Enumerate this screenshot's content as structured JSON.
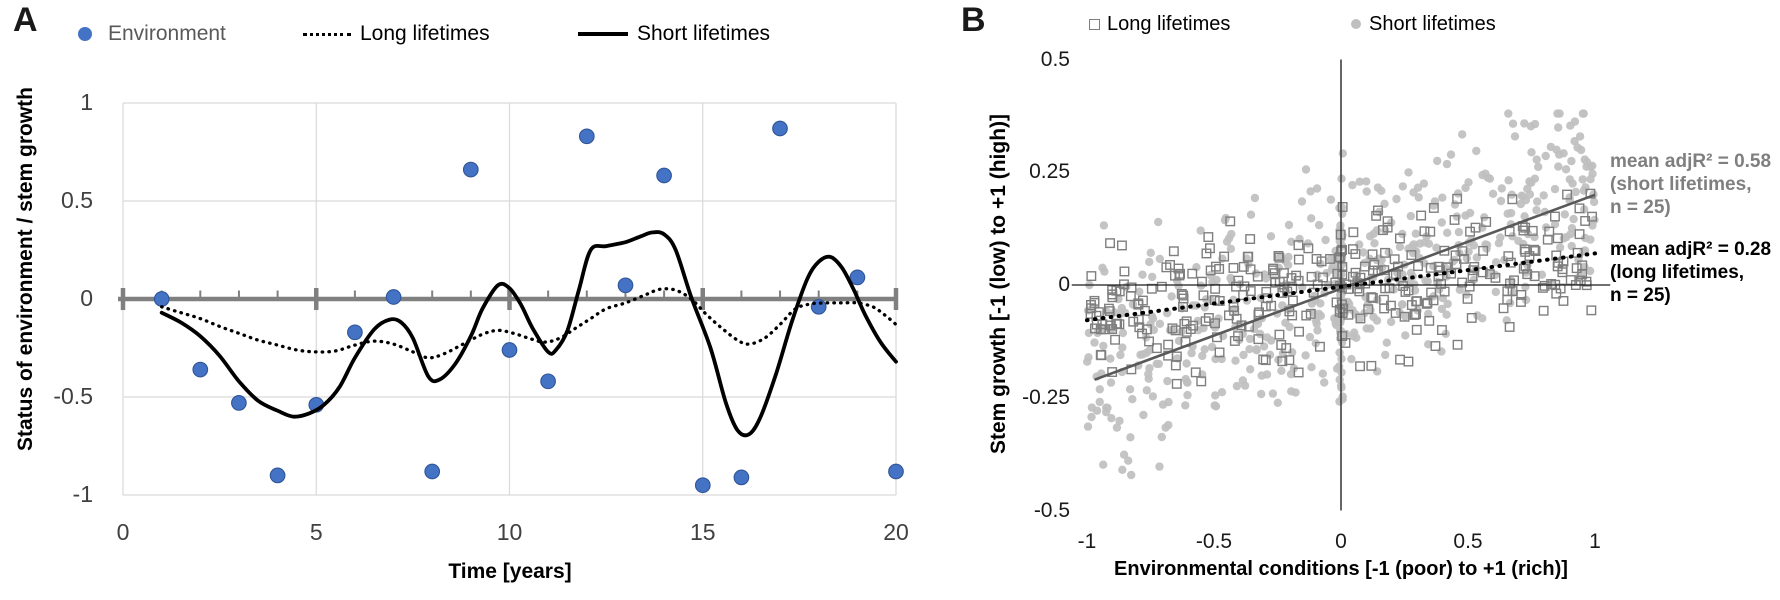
{
  "panels": {
    "a_label": "A",
    "b_label": "B"
  },
  "colors": {
    "environment_blue": "#4472C4",
    "environment_blue_edge": "#2F5597",
    "line_black": "#000000",
    "short_scatter_gray": "#BFBFBF",
    "long_square_gray": "#7F7F7F",
    "short_trend_gray": "#595959",
    "zero_axis_gray": "#808080",
    "gridline_gray": "#D9D9D9",
    "tick_text_gray": "#404040"
  },
  "chart_data": [
    {
      "id": "panel_a",
      "type": "line",
      "title": "",
      "xlabel": "Time [years]",
      "ylabel": "Status of environment / stem growth",
      "xlim": [
        0,
        20
      ],
      "ylim": [
        -1,
        1
      ],
      "x_ticks": [
        0,
        5,
        10,
        15,
        20
      ],
      "x_tick_labels": [
        "0",
        "5",
        "10",
        "15",
        "20"
      ],
      "minor_x_ticks": [
        1,
        2,
        3,
        4,
        6,
        7,
        8,
        9,
        11,
        12,
        13,
        14,
        16,
        17,
        18,
        19
      ],
      "y_ticks": [
        1,
        0.5,
        0,
        -0.5,
        -1
      ],
      "y_tick_labels": [
        "1",
        "0.5",
        "0",
        "-0.5",
        "-1"
      ],
      "grid": true,
      "legend_position": "top",
      "series": [
        {
          "name": "Environment",
          "kind": "scatter",
          "color": "#4472C4",
          "points": [
            [
              1,
              0
            ],
            [
              2,
              -0.36
            ],
            [
              3,
              -0.53
            ],
            [
              4,
              -0.9
            ],
            [
              5,
              -0.54
            ],
            [
              6,
              -0.17
            ],
            [
              7,
              0.01
            ],
            [
              8,
              -0.88
            ],
            [
              9,
              0.66
            ],
            [
              10,
              -0.26
            ],
            [
              11,
              -0.42
            ],
            [
              12,
              0.83
            ],
            [
              13,
              0.07
            ],
            [
              14,
              0.63
            ],
            [
              15,
              -0.95
            ],
            [
              16,
              -0.91
            ],
            [
              17,
              0.87
            ],
            [
              18,
              -0.04
            ],
            [
              19,
              0.11
            ],
            [
              20,
              -0.88
            ]
          ]
        },
        {
          "name": "Long lifetimes",
          "kind": "line",
          "style": "dotted",
          "color": "#000000",
          "points": [
            [
              1,
              -0.04
            ],
            [
              1.5,
              -0.07
            ],
            [
              2,
              -0.1
            ],
            [
              2.5,
              -0.14
            ],
            [
              3,
              -0.175
            ],
            [
              3.5,
              -0.21
            ],
            [
              4,
              -0.235
            ],
            [
              4.5,
              -0.26
            ],
            [
              5,
              -0.27
            ],
            [
              5.5,
              -0.265
            ],
            [
              6,
              -0.235
            ],
            [
              6.5,
              -0.215
            ],
            [
              7,
              -0.23
            ],
            [
              7.5,
              -0.27
            ],
            [
              7.9,
              -0.3
            ],
            [
              8.3,
              -0.28
            ],
            [
              8.8,
              -0.23
            ],
            [
              9.3,
              -0.18
            ],
            [
              9.7,
              -0.16
            ],
            [
              10.1,
              -0.175
            ],
            [
              10.5,
              -0.2
            ],
            [
              10.9,
              -0.22
            ],
            [
              11.3,
              -0.2
            ],
            [
              11.7,
              -0.15
            ],
            [
              12.1,
              -0.1
            ],
            [
              12.5,
              -0.05
            ],
            [
              13,
              -0.02
            ],
            [
              13.5,
              0.02
            ],
            [
              13.9,
              0.05
            ],
            [
              14.3,
              0.045
            ],
            [
              14.7,
              0
            ],
            [
              15.1,
              -0.08
            ],
            [
              15.5,
              -0.15
            ],
            [
              15.9,
              -0.21
            ],
            [
              16.2,
              -0.23
            ],
            [
              16.6,
              -0.2
            ],
            [
              17,
              -0.13
            ],
            [
              17.4,
              -0.05
            ],
            [
              17.8,
              -0.025
            ],
            [
              18.2,
              -0.02
            ],
            [
              18.6,
              -0.02
            ],
            [
              19,
              -0.02
            ],
            [
              19.4,
              -0.04
            ],
            [
              19.7,
              -0.08
            ],
            [
              20,
              -0.13
            ]
          ]
        },
        {
          "name": "Short lifetimes",
          "kind": "line",
          "style": "solid",
          "color": "#000000",
          "points": [
            [
              1,
              -0.07
            ],
            [
              1.5,
              -0.12
            ],
            [
              2,
              -0.19
            ],
            [
              2.5,
              -0.29
            ],
            [
              3,
              -0.42
            ],
            [
              3.5,
              -0.52
            ],
            [
              4,
              -0.57
            ],
            [
              4.4,
              -0.6
            ],
            [
              4.8,
              -0.585
            ],
            [
              5.2,
              -0.54
            ],
            [
              5.6,
              -0.45
            ],
            [
              6,
              -0.3
            ],
            [
              6.5,
              -0.155
            ],
            [
              6.9,
              -0.105
            ],
            [
              7.2,
              -0.12
            ],
            [
              7.5,
              -0.2
            ],
            [
              7.9,
              -0.395
            ],
            [
              8.2,
              -0.41
            ],
            [
              8.6,
              -0.33
            ],
            [
              9,
              -0.19
            ],
            [
              9.3,
              -0.05
            ],
            [
              9.7,
              0.07
            ],
            [
              10,
              0.055
            ],
            [
              10.3,
              -0.03
            ],
            [
              10.6,
              -0.15
            ],
            [
              11,
              -0.27
            ],
            [
              11.2,
              -0.26
            ],
            [
              11.5,
              -0.16
            ],
            [
              11.8,
              0.05
            ],
            [
              12.1,
              0.25
            ],
            [
              12.5,
              0.27
            ],
            [
              13,
              0.29
            ],
            [
              13.4,
              0.32
            ],
            [
              13.7,
              0.34
            ],
            [
              14,
              0.33
            ],
            [
              14.3,
              0.25
            ],
            [
              14.7,
              0.01
            ],
            [
              15.2,
              -0.25
            ],
            [
              15.6,
              -0.53
            ],
            [
              15.9,
              -0.67
            ],
            [
              16.2,
              -0.69
            ],
            [
              16.5,
              -0.6
            ],
            [
              16.9,
              -0.38
            ],
            [
              17.3,
              -0.12
            ],
            [
              17.7,
              0.1
            ],
            [
              18,
              0.19
            ],
            [
              18.3,
              0.215
            ],
            [
              18.6,
              0.16
            ],
            [
              18.9,
              0.05
            ],
            [
              19.2,
              -0.08
            ],
            [
              19.6,
              -0.22
            ],
            [
              20,
              -0.32
            ]
          ]
        }
      ]
    },
    {
      "id": "panel_b",
      "type": "scatter",
      "title": "",
      "xlabel": "Environmental conditions [-1 (poor) to +1 (rich)]",
      "ylabel": "Stem growth [-1 (low) to +1 (high)]",
      "xlim": [
        -1,
        1
      ],
      "ylim": [
        -0.5,
        0.5
      ],
      "x_ticks": [
        -1,
        -0.5,
        0,
        0.5,
        1
      ],
      "x_tick_labels": [
        "-1",
        "-0.5",
        "0",
        "0.5",
        "1"
      ],
      "y_ticks": [
        0.5,
        0.25,
        0,
        -0.25,
        -0.5
      ],
      "y_tick_labels": [
        "0.5",
        "0.25",
        "0",
        "-0.25",
        "-0.5"
      ],
      "grid": false,
      "legend_position": "top",
      "series": [
        {
          "name": "Short lifetimes",
          "marker": "gray-dot",
          "color": "#BFBFBF",
          "n_points": 520,
          "slope": 0.21,
          "intercept": 0,
          "noise_sd": 0.115,
          "y_clip": [
            -0.46,
            0.38
          ],
          "zero_cluster": {
            "n": 55,
            "y_mean": -0.02,
            "y_sd": 0.12
          },
          "seed": 42
        },
        {
          "name": "Long lifetimes",
          "marker": "open-square",
          "color": "#7F7F7F",
          "n_points": 330,
          "slope": 0.07,
          "intercept": 0,
          "noise_sd": 0.075,
          "y_clip": [
            -0.28,
            0.22
          ],
          "zero_cluster": {
            "n": 12,
            "y_mean": 0,
            "y_sd": 0.07
          },
          "seed": 7
        }
      ],
      "trendlines": [
        {
          "series": "Short lifetimes",
          "style": "solid",
          "color": "#595959",
          "x1": -0.97,
          "y1": -0.21,
          "x2": 1.0,
          "y2": 0.2
        },
        {
          "series": "Long lifetimes",
          "style": "dotted",
          "color": "#000000",
          "x1": -1.0,
          "y1": -0.078,
          "x2": 1.0,
          "y2": 0.07
        }
      ],
      "annotations": [
        {
          "lines": [
            "mean adjR² = 0.58",
            "(short lifetimes,",
            "n = 25)"
          ],
          "color": "#7F7F7F"
        },
        {
          "lines": [
            "mean adjR² = 0.28",
            "(long lifetimes,",
            "n = 25)"
          ],
          "color": "#000000"
        }
      ]
    }
  ]
}
